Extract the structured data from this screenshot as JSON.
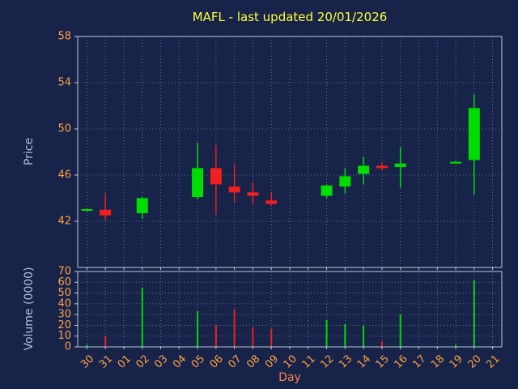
{
  "chart_data": {
    "type": "candlestick",
    "title": "MAFL - last updated 20/01/2026",
    "xlabel": "Day",
    "ylabel_price": "Price",
    "ylabel_volume": "Volume (0000)",
    "grid": true,
    "x_categories": [
      "30",
      "31",
      "01",
      "02",
      "03",
      "04",
      "05",
      "06",
      "07",
      "08",
      "09",
      "10",
      "11",
      "12",
      "13",
      "14",
      "15",
      "16",
      "17",
      "18",
      "19",
      "20",
      "21"
    ],
    "price_ylim": [
      38,
      58
    ],
    "price_ticks": [
      42,
      46,
      50,
      54,
      58
    ],
    "volume_ylim": [
      0,
      70
    ],
    "volume_ticks": [
      0,
      10,
      20,
      30,
      40,
      50,
      60,
      70
    ],
    "candles": [
      {
        "day": "30",
        "open": 42.95,
        "high": 43.1,
        "low": 42.85,
        "close": 43.05,
        "volume": 2
      },
      {
        "day": "31",
        "open": 43.0,
        "high": 44.4,
        "low": 42.1,
        "close": 42.5,
        "volume": 10
      },
      {
        "day": "02",
        "open": 42.7,
        "high": 44.1,
        "low": 42.2,
        "close": 44.0,
        "volume": 55
      },
      {
        "day": "05",
        "open": 44.1,
        "high": 48.8,
        "low": 43.9,
        "close": 46.6,
        "volume": 33
      },
      {
        "day": "06",
        "open": 46.6,
        "high": 48.6,
        "low": 42.6,
        "close": 45.2,
        "volume": 20
      },
      {
        "day": "07",
        "open": 45.0,
        "high": 46.9,
        "low": 43.6,
        "close": 44.5,
        "volume": 35
      },
      {
        "day": "08",
        "open": 44.5,
        "high": 45.4,
        "low": 43.5,
        "close": 44.2,
        "volume": 18
      },
      {
        "day": "09",
        "open": 43.8,
        "high": 44.5,
        "low": 43.3,
        "close": 43.5,
        "volume": 17
      },
      {
        "day": "12",
        "open": 44.2,
        "high": 45.2,
        "low": 44.0,
        "close": 45.1,
        "volume": 25
      },
      {
        "day": "13",
        "open": 45.0,
        "high": 46.6,
        "low": 44.4,
        "close": 45.9,
        "volume": 21
      },
      {
        "day": "14",
        "open": 46.1,
        "high": 47.6,
        "low": 45.2,
        "close": 46.8,
        "volume": 20
      },
      {
        "day": "15",
        "open": 46.8,
        "high": 47.1,
        "low": 46.4,
        "close": 46.6,
        "volume": 5
      },
      {
        "day": "16",
        "open": 46.7,
        "high": 48.4,
        "low": 44.9,
        "close": 47.0,
        "volume": 30
      },
      {
        "day": "19",
        "open": 47.0,
        "high": 47.2,
        "low": 46.95,
        "close": 47.15,
        "volume": 2
      },
      {
        "day": "20",
        "open": 47.3,
        "high": 53.0,
        "low": 44.3,
        "close": 51.8,
        "volume": 62
      }
    ],
    "colors": {
      "background": "#18234a",
      "up": "#00dd00",
      "down": "#ee2020",
      "title": "#ffff3a",
      "tick_label": "#ffa040",
      "axis_label": "#a9c0dc",
      "xlabel_color": "#ff7f50",
      "grid": "#93a5c0",
      "spine": "#bcc8da"
    }
  }
}
